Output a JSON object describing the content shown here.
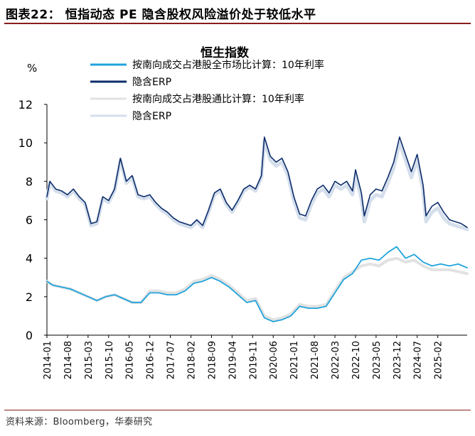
{
  "figure_title": "图表22： 恒指动态 PE 隐含股权风险溢价处于较低水平",
  "source_note": "资料来源：Bloomberg，华泰研究",
  "colors": {
    "southbound_mkt": "#1fa3dc",
    "erp_mkt": "#0d2d6b",
    "southbound_connect": "#e2e2e2",
    "erp_connect": "#d5dfec",
    "axis": "#000000",
    "rule": "#8a1c1c"
  },
  "chart_data": {
    "type": "line",
    "title": "恒生指数",
    "ylabel": "%",
    "xlabel": "",
    "ylim": [
      0,
      12
    ],
    "yticks": [
      0,
      2,
      4,
      6,
      8,
      10,
      12
    ],
    "x_ticks": [
      "2014-01",
      "2014-08",
      "2015-03",
      "2015-10",
      "2016-05",
      "2016-12",
      "2017-07",
      "2018-02",
      "2018-09",
      "2019-04",
      "2019-11",
      "2020-06",
      "2021-01",
      "2021-08",
      "2022-03",
      "2022-10",
      "2023-05",
      "2023-12",
      "2024-07",
      "2025-02"
    ],
    "x_range": [
      "2014-01",
      "2025-12"
    ],
    "legend": [
      {
        "label": "按南向成交占港股全市场比计算：10年利率",
        "series": "southbound_mkt_rate"
      },
      {
        "label": "隐含ERP",
        "series": "erp_mkt"
      },
      {
        "label": "按南向成交占港股通比计算：10年利率",
        "series": "southbound_connect_rate"
      },
      {
        "label": "隐含ERP",
        "series": "erp_connect"
      }
    ],
    "series": [
      {
        "name": "erp_mkt",
        "label": "隐含ERP（全市场）",
        "color_key": "erp_mkt",
        "points": [
          [
            "2014-01",
            7.2
          ],
          [
            "2014-02",
            8.0
          ],
          [
            "2014-04",
            7.6
          ],
          [
            "2014-06",
            7.5
          ],
          [
            "2014-08",
            7.3
          ],
          [
            "2014-10",
            7.6
          ],
          [
            "2014-12",
            7.2
          ],
          [
            "2015-02",
            6.9
          ],
          [
            "2015-04",
            5.8
          ],
          [
            "2015-06",
            5.9
          ],
          [
            "2015-08",
            7.2
          ],
          [
            "2015-10",
            7.0
          ],
          [
            "2015-12",
            7.6
          ],
          [
            "2016-02",
            9.2
          ],
          [
            "2016-04",
            8.0
          ],
          [
            "2016-06",
            8.3
          ],
          [
            "2016-08",
            7.3
          ],
          [
            "2016-10",
            7.2
          ],
          [
            "2016-12",
            7.3
          ],
          [
            "2017-02",
            6.9
          ],
          [
            "2017-04",
            6.6
          ],
          [
            "2017-06",
            6.4
          ],
          [
            "2017-08",
            6.1
          ],
          [
            "2017-10",
            5.9
          ],
          [
            "2017-12",
            5.8
          ],
          [
            "2018-02",
            5.7
          ],
          [
            "2018-04",
            6.0
          ],
          [
            "2018-06",
            5.7
          ],
          [
            "2018-08",
            6.5
          ],
          [
            "2018-10",
            7.4
          ],
          [
            "2018-12",
            7.6
          ],
          [
            "2019-02",
            6.9
          ],
          [
            "2019-04",
            6.5
          ],
          [
            "2019-06",
            7.0
          ],
          [
            "2019-08",
            7.6
          ],
          [
            "2019-10",
            7.8
          ],
          [
            "2019-12",
            7.6
          ],
          [
            "2020-02",
            8.3
          ],
          [
            "2020-03",
            10.3
          ],
          [
            "2020-05",
            9.3
          ],
          [
            "2020-07",
            9.0
          ],
          [
            "2020-09",
            9.2
          ],
          [
            "2020-11",
            8.5
          ],
          [
            "2021-01",
            7.2
          ],
          [
            "2021-03",
            6.3
          ],
          [
            "2021-05",
            6.2
          ],
          [
            "2021-07",
            7.0
          ],
          [
            "2021-09",
            7.6
          ],
          [
            "2021-11",
            7.8
          ],
          [
            "2022-01",
            7.4
          ],
          [
            "2022-03",
            8.0
          ],
          [
            "2022-05",
            7.8
          ],
          [
            "2022-07",
            8.0
          ],
          [
            "2022-09",
            7.5
          ],
          [
            "2022-10",
            8.6
          ],
          [
            "2022-12",
            7.4
          ],
          [
            "2023-01",
            6.2
          ],
          [
            "2023-03",
            7.3
          ],
          [
            "2023-05",
            7.6
          ],
          [
            "2023-07",
            7.5
          ],
          [
            "2023-09",
            8.2
          ],
          [
            "2023-11",
            9.0
          ],
          [
            "2024-01",
            10.3
          ],
          [
            "2024-03",
            9.4
          ],
          [
            "2024-05",
            8.5
          ],
          [
            "2024-07",
            9.4
          ],
          [
            "2024-09",
            7.8
          ],
          [
            "2024-10",
            6.2
          ],
          [
            "2024-12",
            6.7
          ],
          [
            "2025-02",
            6.9
          ],
          [
            "2025-04",
            6.4
          ],
          [
            "2025-06",
            6.0
          ],
          [
            "2025-08",
            5.9
          ],
          [
            "2025-10",
            5.8
          ],
          [
            "2025-12",
            5.6
          ]
        ]
      },
      {
        "name": "erp_connect",
        "label": "隐含ERP（港股通）",
        "color_key": "erp_connect",
        "points": [
          [
            "2014-01",
            7.1
          ],
          [
            "2014-02",
            7.9
          ],
          [
            "2014-04",
            7.5
          ],
          [
            "2014-06",
            7.4
          ],
          [
            "2014-08",
            7.2
          ],
          [
            "2014-10",
            7.5
          ],
          [
            "2014-12",
            7.1
          ],
          [
            "2015-02",
            6.8
          ],
          [
            "2015-04",
            5.7
          ],
          [
            "2015-06",
            5.8
          ],
          [
            "2015-08",
            7.1
          ],
          [
            "2015-10",
            6.9
          ],
          [
            "2015-12",
            7.5
          ],
          [
            "2016-02",
            9.1
          ],
          [
            "2016-04",
            7.9
          ],
          [
            "2016-06",
            8.2
          ],
          [
            "2016-08",
            7.2
          ],
          [
            "2016-10",
            7.1
          ],
          [
            "2016-12",
            7.2
          ],
          [
            "2017-02",
            6.8
          ],
          [
            "2017-04",
            6.5
          ],
          [
            "2017-06",
            6.3
          ],
          [
            "2017-08",
            6.0
          ],
          [
            "2017-10",
            5.8
          ],
          [
            "2017-12",
            5.7
          ],
          [
            "2018-02",
            5.6
          ],
          [
            "2018-04",
            5.9
          ],
          [
            "2018-06",
            5.6
          ],
          [
            "2018-08",
            6.4
          ],
          [
            "2018-10",
            7.3
          ],
          [
            "2018-12",
            7.5
          ],
          [
            "2019-02",
            6.8
          ],
          [
            "2019-04",
            6.4
          ],
          [
            "2019-06",
            6.9
          ],
          [
            "2019-08",
            7.5
          ],
          [
            "2019-10",
            7.7
          ],
          [
            "2019-12",
            7.5
          ],
          [
            "2020-02",
            8.2
          ],
          [
            "2020-03",
            10.1
          ],
          [
            "2020-05",
            9.1
          ],
          [
            "2020-07",
            8.8
          ],
          [
            "2020-09",
            9.0
          ],
          [
            "2020-11",
            8.3
          ],
          [
            "2021-01",
            7.0
          ],
          [
            "2021-03",
            6.1
          ],
          [
            "2021-05",
            6.0
          ],
          [
            "2021-07",
            6.8
          ],
          [
            "2021-09",
            7.4
          ],
          [
            "2021-11",
            7.6
          ],
          [
            "2022-01",
            7.2
          ],
          [
            "2022-03",
            7.8
          ],
          [
            "2022-05",
            7.6
          ],
          [
            "2022-07",
            7.8
          ],
          [
            "2022-09",
            7.3
          ],
          [
            "2022-10",
            8.3
          ],
          [
            "2022-12",
            7.1
          ],
          [
            "2023-01",
            5.9
          ],
          [
            "2023-03",
            7.0
          ],
          [
            "2023-05",
            7.3
          ],
          [
            "2023-07",
            7.2
          ],
          [
            "2023-09",
            7.9
          ],
          [
            "2023-11",
            8.7
          ],
          [
            "2024-01",
            10.0
          ],
          [
            "2024-03",
            9.1
          ],
          [
            "2024-05",
            8.2
          ],
          [
            "2024-07",
            9.1
          ],
          [
            "2024-09",
            7.5
          ],
          [
            "2024-10",
            5.9
          ],
          [
            "2024-12",
            6.4
          ],
          [
            "2025-02",
            6.6
          ],
          [
            "2025-04",
            6.1
          ],
          [
            "2025-06",
            5.8
          ],
          [
            "2025-08",
            5.7
          ],
          [
            "2025-10",
            5.6
          ],
          [
            "2025-12",
            5.5
          ]
        ]
      },
      {
        "name": "southbound_connect_rate",
        "label": "按南向成交占港股通比计算：10年利率",
        "color_key": "southbound_connect",
        "points": [
          [
            "2014-01",
            2.8
          ],
          [
            "2014-03",
            2.6
          ],
          [
            "2014-06",
            2.5
          ],
          [
            "2014-09",
            2.4
          ],
          [
            "2014-12",
            2.2
          ],
          [
            "2015-03",
            2.0
          ],
          [
            "2015-06",
            1.8
          ],
          [
            "2015-09",
            2.0
          ],
          [
            "2015-12",
            2.1
          ],
          [
            "2016-03",
            1.9
          ],
          [
            "2016-06",
            1.7
          ],
          [
            "2016-09",
            1.7
          ],
          [
            "2016-12",
            2.3
          ],
          [
            "2017-03",
            2.3
          ],
          [
            "2017-06",
            2.2
          ],
          [
            "2017-09",
            2.2
          ],
          [
            "2017-12",
            2.4
          ],
          [
            "2018-03",
            2.8
          ],
          [
            "2018-06",
            2.9
          ],
          [
            "2018-09",
            3.1
          ],
          [
            "2018-12",
            2.9
          ],
          [
            "2019-03",
            2.6
          ],
          [
            "2019-06",
            2.2
          ],
          [
            "2019-09",
            1.8
          ],
          [
            "2019-12",
            1.9
          ],
          [
            "2020-03",
            1.0
          ],
          [
            "2020-06",
            0.8
          ],
          [
            "2020-09",
            0.9
          ],
          [
            "2020-12",
            1.1
          ],
          [
            "2021-03",
            1.6
          ],
          [
            "2021-06",
            1.5
          ],
          [
            "2021-09",
            1.5
          ],
          [
            "2021-12",
            1.6
          ],
          [
            "2022-03",
            2.3
          ],
          [
            "2022-06",
            3.0
          ],
          [
            "2022-09",
            3.3
          ],
          [
            "2022-12",
            3.6
          ],
          [
            "2023-03",
            3.7
          ],
          [
            "2023-06",
            3.6
          ],
          [
            "2023-09",
            3.9
          ],
          [
            "2023-12",
            4.0
          ],
          [
            "2024-03",
            3.8
          ],
          [
            "2024-06",
            3.9
          ],
          [
            "2024-09",
            3.6
          ],
          [
            "2024-12",
            3.4
          ],
          [
            "2025-03",
            3.4
          ],
          [
            "2025-06",
            3.4
          ],
          [
            "2025-09",
            3.3
          ],
          [
            "2025-12",
            3.2
          ]
        ]
      },
      {
        "name": "southbound_mkt_rate",
        "label": "按南向成交占港股全市场比计算：10年利率",
        "color_key": "southbound_mkt",
        "points": [
          [
            "2014-01",
            2.8
          ],
          [
            "2014-03",
            2.6
          ],
          [
            "2014-06",
            2.5
          ],
          [
            "2014-09",
            2.4
          ],
          [
            "2014-12",
            2.2
          ],
          [
            "2015-03",
            2.0
          ],
          [
            "2015-06",
            1.8
          ],
          [
            "2015-09",
            2.0
          ],
          [
            "2015-12",
            2.1
          ],
          [
            "2016-03",
            1.9
          ],
          [
            "2016-06",
            1.7
          ],
          [
            "2016-09",
            1.7
          ],
          [
            "2016-12",
            2.2
          ],
          [
            "2017-03",
            2.2
          ],
          [
            "2017-06",
            2.1
          ],
          [
            "2017-09",
            2.1
          ],
          [
            "2017-12",
            2.3
          ],
          [
            "2018-03",
            2.7
          ],
          [
            "2018-06",
            2.8
          ],
          [
            "2018-09",
            3.0
          ],
          [
            "2018-12",
            2.8
          ],
          [
            "2019-03",
            2.5
          ],
          [
            "2019-06",
            2.1
          ],
          [
            "2019-09",
            1.7
          ],
          [
            "2019-12",
            1.8
          ],
          [
            "2020-03",
            0.9
          ],
          [
            "2020-06",
            0.7
          ],
          [
            "2020-09",
            0.8
          ],
          [
            "2020-12",
            1.0
          ],
          [
            "2021-03",
            1.5
          ],
          [
            "2021-06",
            1.4
          ],
          [
            "2021-09",
            1.4
          ],
          [
            "2021-12",
            1.5
          ],
          [
            "2022-03",
            2.2
          ],
          [
            "2022-06",
            2.9
          ],
          [
            "2022-09",
            3.2
          ],
          [
            "2022-12",
            3.9
          ],
          [
            "2023-03",
            4.0
          ],
          [
            "2023-06",
            3.9
          ],
          [
            "2023-09",
            4.3
          ],
          [
            "2023-12",
            4.6
          ],
          [
            "2024-03",
            4.0
          ],
          [
            "2024-06",
            4.2
          ],
          [
            "2024-09",
            3.8
          ],
          [
            "2024-12",
            3.6
          ],
          [
            "2025-03",
            3.7
          ],
          [
            "2025-06",
            3.6
          ],
          [
            "2025-09",
            3.7
          ],
          [
            "2025-12",
            3.5
          ]
        ]
      }
    ]
  }
}
